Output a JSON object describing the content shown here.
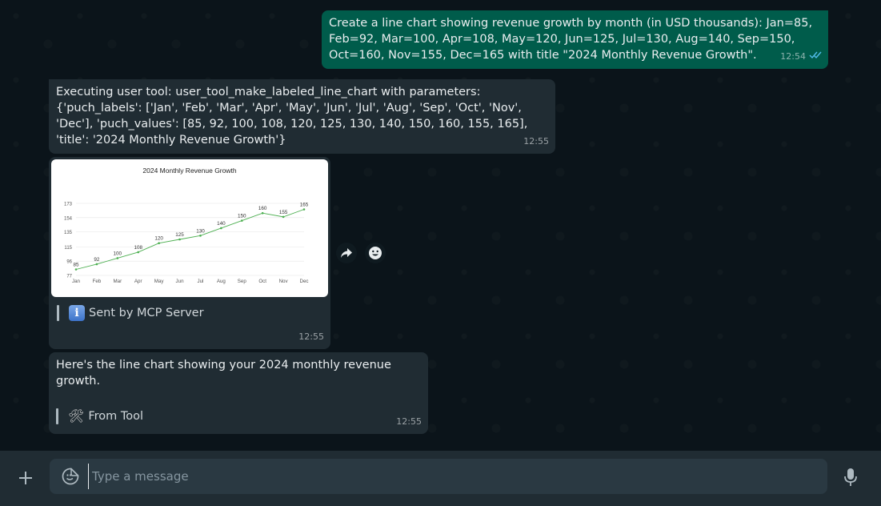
{
  "messages": {
    "user_prompt": {
      "text": "Create a line chart showing revenue growth by month (in USD thousands): Jan=85, Feb=92, Mar=100, Apr=108, May=120, Jun=125, Jul=130, Aug=140, Sep=150, Oct=160, Nov=155, Dec=165 with title \"2024 Monthly Revenue Growth\".",
      "time": "12:54",
      "status_icon": "double-check-read-icon"
    },
    "tool_call": {
      "text": "Executing user tool: user_tool_make_labeled_line_chart with parameters: {'puch_labels': ['Jan', 'Feb', 'Mar', 'Apr', 'May', 'Jun', 'Jul', 'Aug', 'Sep', 'Oct', 'Nov', 'Dec'], 'puch_values': [85, 92, 100, 108, 120, 125, 130, 140, 150, 160, 155, 165], 'title': '2024 Monthly Revenue Growth'}",
      "time": "12:55"
    },
    "chart_message": {
      "caption": "Sent by MCP Server",
      "caption_icon": "info-icon",
      "time": "12:55"
    },
    "reply": {
      "text": "Here's the line chart showing your 2024 monthly revenue growth.",
      "caption": "From Tool",
      "caption_icon": "hammer-wrench-icon",
      "time": "12:55"
    }
  },
  "chart_data": {
    "type": "line",
    "title": "2024 Monthly Revenue Growth",
    "categories": [
      "Jan",
      "Feb",
      "Mar",
      "Apr",
      "May",
      "Jun",
      "Jul",
      "Aug",
      "Sep",
      "Oct",
      "Nov",
      "Dec"
    ],
    "values": [
      85,
      92,
      100,
      108,
      120,
      125,
      130,
      140,
      150,
      160,
      155,
      165
    ],
    "yticks": [
      77,
      96,
      115,
      135,
      154,
      173
    ],
    "ylim": [
      77,
      173
    ],
    "grid": true,
    "line_color": "#4caf50",
    "data_labels": true
  },
  "hover_actions": [
    "forward-icon",
    "emoji-react-icon"
  ],
  "composer": {
    "placeholder": "Type a message",
    "attach_icon": "plus-icon",
    "emoji_icon": "sticker-emoji-icon",
    "mic_icon": "microphone-icon"
  },
  "colors": {
    "outgoing_bubble": "#005c4b",
    "incoming_bubble": "#202c33",
    "background": "#0b141a",
    "footer": "#202c33",
    "read_ticks": "#53bdeb"
  }
}
